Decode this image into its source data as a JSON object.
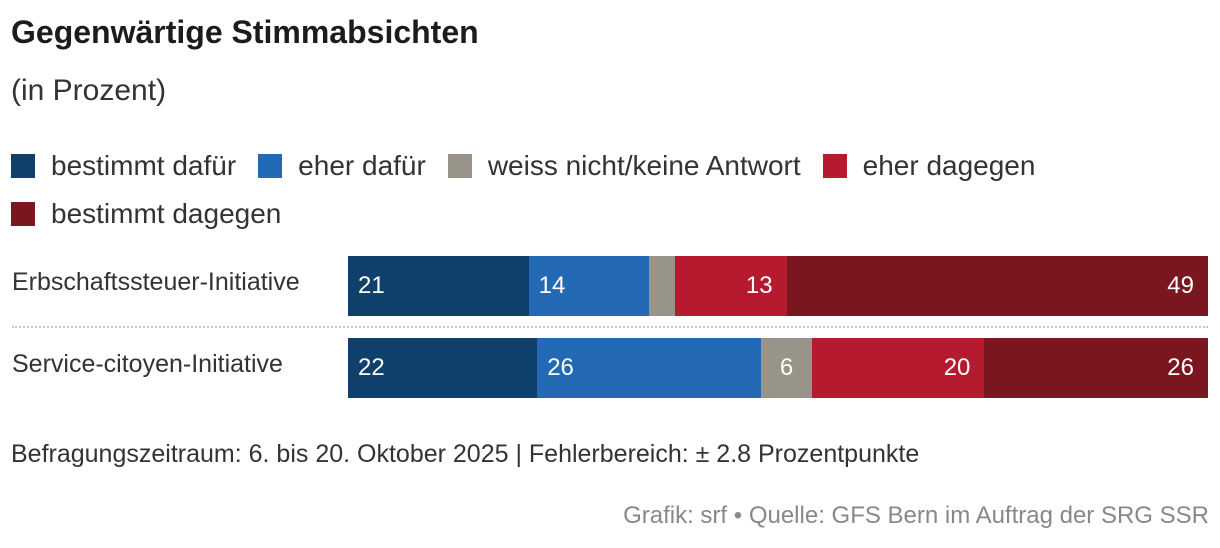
{
  "chart_data": {
    "type": "bar",
    "orientation": "horizontal",
    "stacked": true,
    "title": "Gegenwärtige Stimmabsichten",
    "subtitle": "(in Prozent)",
    "categories": [
      "Erbschaftssteuer-Initiative",
      "Service-citoyen-Initiative"
    ],
    "series": [
      {
        "name": "bestimmt dafür",
        "color": "#0f3f6b",
        "values": [
          21,
          22
        ]
      },
      {
        "name": "eher dafür",
        "color": "#2369b3",
        "values": [
          14,
          26
        ]
      },
      {
        "name": "weiss nicht/keine Antwort",
        "color": "#99948a",
        "values": [
          3,
          6
        ]
      },
      {
        "name": "eher dagegen",
        "color": "#b51a2e",
        "values": [
          13,
          20
        ]
      },
      {
        "name": "bestimmt dagegen",
        "color": "#7a1620",
        "values": [
          49,
          26
        ]
      }
    ],
    "value_labels": [
      [
        "21",
        "14",
        "",
        "13",
        "49"
      ],
      [
        "22",
        "26",
        "6",
        "20",
        "26"
      ]
    ],
    "xlim": [
      0,
      100
    ],
    "legend_position": "top",
    "note": "Befragungszeitraum: 6. bis 20. Oktober 2025 | Fehlerbereich: ± 2.8 Prozentpunkte",
    "source": "Grafik: srf • Quelle: GFS Bern im Auftrag der SRG SSR"
  }
}
